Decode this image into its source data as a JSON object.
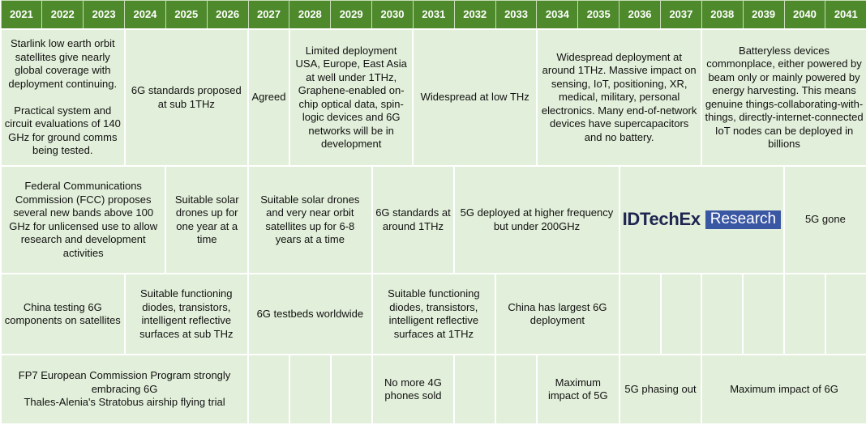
{
  "years": [
    "2021",
    "2022",
    "2023",
    "2024",
    "2025",
    "2026",
    "2027",
    "2028",
    "2029",
    "2030",
    "2031",
    "2032",
    "2033",
    "2034",
    "2035",
    "2036",
    "2037",
    "2038",
    "2039",
    "2040",
    "2041"
  ],
  "rows": [
    [
      "Starlink low earth orbit satellites give nearly global coverage with deployment continuing.\n\nPractical system and circuit evaluations of  140 GHz for ground comms being tested.",
      "6G standards proposed at sub 1THz",
      "Agreed",
      "Limited deployment USA, Europe, East Asia at well under 1THz, Graphene-enabled on-chip optical data, spin-logic devices and 6G networks will be in development",
      "Widespread at low THz",
      "Widespread deployment at around 1THz. Massive impact on sensing, IoT, positioning, XR, medical, military, personal electronics. Many end-of-network devices have supercapacitors and no battery.",
      "Batteryless devices commonplace, either powered by beam only or mainly powered by energy harvesting. This means genuine things-collaborating-with-things, directly-internet-connected IoT nodes can be deployed in billions"
    ],
    [
      "Federal Communications Commission  (FCC) proposes several new bands above 100 GHz for unlicensed use to allow research and development activities",
      "Suitable solar drones up for one year at a time",
      "Suitable solar drones and very near orbit satellites up for 6-8 years at a time",
      "6G standards at around 1THz",
      "5G deployed at higher frequency but under 200GHz",
      "5G gone"
    ],
    [
      "China testing 6G components on satellites",
      "Suitable functioning diodes, transistors, intelligent reflective surfaces at sub THz",
      "6G testbeds worldwide",
      "Suitable functioning diodes, transistors, intelligent reflective surfaces at 1THz",
      "China has largest 6G deployment"
    ],
    [
      "FP7 European Commission Program strongly embracing 6G\nThales-Alenia's Stratobus airship flying trial",
      "No more 4G phones sold",
      "Maximum impact of 5G",
      "5G phasing out",
      "Maximum impact of 6G"
    ]
  ],
  "logo": {
    "brand": "IDTechEx",
    "label": "Research"
  }
}
